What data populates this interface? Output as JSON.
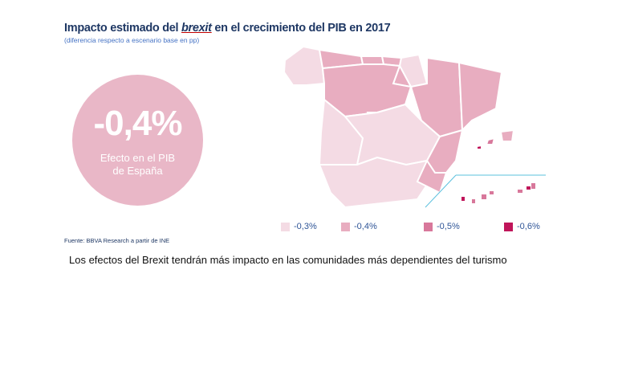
{
  "header": {
    "title_part1": "Impacto estimado del ",
    "title_emph": "brexit",
    "title_part2": " en el crecimiento del  PIB en 2017",
    "subtitle": "(diferencia respecto a escenario base en pp)"
  },
  "kpi": {
    "value": "-0,4%",
    "label_line1": "Efecto en el PIB",
    "label_line2": "de España"
  },
  "footer": {
    "source": "Fuente: BBVA Research a partir de INE",
    "caption": "Los efectos del Brexit tendrán más impacto en las comunidades más dependientes del turismo"
  },
  "colors": {
    "background": "#ffffff",
    "title": "#1f3864",
    "circle": "#e9b7c7",
    "border": "#ffffff",
    "inset_line": "#5bc0de"
  },
  "chart_data": {
    "type": "choropleth",
    "legend": [
      {
        "label": "-0,3%",
        "color": "#f4dbe4"
      },
      {
        "label": "-0,4%",
        "color": "#e8adc0"
      },
      {
        "label": "-0,5%",
        "color": "#d8789b"
      },
      {
        "label": "-0,6%",
        "color": "#c0155a"
      }
    ],
    "regions": [
      {
        "value": "-0,3%"
      },
      {
        "value": "-0,4%"
      },
      {
        "value": "-0,4%"
      },
      {
        "value": "-0,4%"
      },
      {
        "value": "-0,3%"
      },
      {
        "value": "-0,4%"
      },
      {
        "value": "-0,4%"
      },
      {
        "value": "-0,4%"
      },
      {
        "value": "-0,4%"
      },
      {
        "value": "-0,4%"
      },
      {
        "value": "-0,3%"
      },
      {
        "value": "-0,3%"
      },
      {
        "value": "-0,3%"
      },
      {
        "value": "-0,4%"
      },
      {
        "value": "-0,4%"
      },
      {
        "value": "-0,4%"
      },
      {
        "value": "-0,5%"
      },
      {
        "value": "-0,6%"
      },
      {
        "value": "-0,5%"
      },
      {
        "value": "-0,5%"
      }
    ]
  }
}
